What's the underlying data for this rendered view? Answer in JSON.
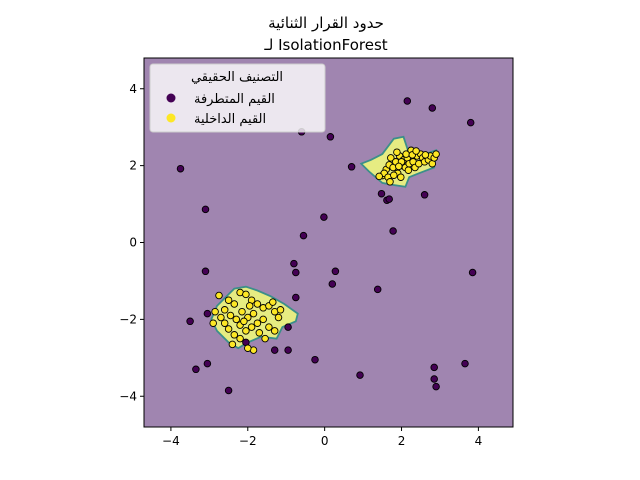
{
  "chart_data": {
    "type": "scatter",
    "title_line1": "حدود القرار الثنائية",
    "title_line2": "لـ IsolationForest",
    "xlabel": "",
    "ylabel": "",
    "xlim": [
      -4.7,
      4.9
    ],
    "ylim": [
      -4.8,
      4.8
    ],
    "xticks": [
      -4,
      -2,
      0,
      2,
      4
    ],
    "yticks": [
      -4,
      -2,
      0,
      2,
      4
    ],
    "grid": false,
    "legend": {
      "title": "التصنيف الحقيقي",
      "placement": "top-left",
      "entries": [
        {
          "label": "القيم المتطرفة",
          "color": "#440154"
        },
        {
          "label": "القيم الداخلية",
          "color": "#fde725"
        }
      ]
    },
    "colors": {
      "background_region": "#a085b0",
      "inlier_region": "#e6ec82",
      "boundary": "#3b8f8a",
      "outlier": "#440154",
      "inlier": "#fde725",
      "marker_edge": "#000000"
    },
    "inlier_regions": [
      {
        "polygon": [
          [
            1.5,
            2.3
          ],
          [
            1.8,
            2.7
          ],
          [
            2.05,
            2.75
          ],
          [
            2.2,
            2.3
          ],
          [
            2.5,
            2.25
          ],
          [
            2.75,
            2.35
          ],
          [
            2.9,
            2.4
          ],
          [
            2.85,
            1.95
          ],
          [
            2.45,
            1.8
          ],
          [
            2.2,
            1.7
          ],
          [
            2.1,
            1.45
          ],
          [
            1.75,
            1.5
          ],
          [
            1.5,
            1.55
          ],
          [
            1.15,
            1.85
          ],
          [
            0.95,
            2.05
          ],
          [
            1.2,
            2.15
          ]
        ]
      },
      {
        "polygon": [
          [
            -2.35,
            -1.2
          ],
          [
            -2.05,
            -1.15
          ],
          [
            -1.75,
            -1.25
          ],
          [
            -1.4,
            -1.4
          ],
          [
            -1.05,
            -1.6
          ],
          [
            -0.7,
            -1.85
          ],
          [
            -0.75,
            -2.05
          ],
          [
            -1.1,
            -2.2
          ],
          [
            -1.25,
            -2.5
          ],
          [
            -1.65,
            -2.45
          ],
          [
            -2.0,
            -2.6
          ],
          [
            -2.25,
            -2.75
          ],
          [
            -2.5,
            -2.6
          ],
          [
            -2.8,
            -2.3
          ],
          [
            -2.95,
            -2.0
          ],
          [
            -2.8,
            -1.65
          ],
          [
            -2.55,
            -1.4
          ]
        ]
      }
    ],
    "series": [
      {
        "name": "القيم المتطرفة",
        "points": [
          [
            2.15,
            3.68
          ],
          [
            2.8,
            3.5
          ],
          [
            3.8,
            3.12
          ],
          [
            0.15,
            2.75
          ],
          [
            -0.6,
            2.88
          ],
          [
            0.7,
            1.97
          ],
          [
            -3.75,
            1.92
          ],
          [
            1.48,
            1.27
          ],
          [
            1.62,
            1.1
          ],
          [
            1.68,
            1.13
          ],
          [
            2.6,
            1.24
          ],
          [
            -3.1,
            0.86
          ],
          [
            -0.02,
            0.66
          ],
          [
            1.78,
            0.3
          ],
          [
            -0.55,
            0.18
          ],
          [
            -0.8,
            -0.55
          ],
          [
            -0.75,
            -0.78
          ],
          [
            -3.1,
            -0.75
          ],
          [
            0.28,
            -0.75
          ],
          [
            3.85,
            -0.78
          ],
          [
            0.2,
            -1.08
          ],
          [
            1.38,
            -1.22
          ],
          [
            -0.75,
            -1.43
          ],
          [
            -3.5,
            -2.05
          ],
          [
            -3.05,
            -1.85
          ],
          [
            -0.95,
            -2.2
          ],
          [
            -3.05,
            -3.15
          ],
          [
            -3.35,
            -3.3
          ],
          [
            -1.3,
            -2.8
          ],
          [
            -0.95,
            -2.8
          ],
          [
            -0.25,
            -3.05
          ],
          [
            0.92,
            -3.45
          ],
          [
            2.85,
            -3.25
          ],
          [
            2.85,
            -3.55
          ],
          [
            3.65,
            -3.15
          ],
          [
            -2.5,
            -3.85
          ],
          [
            2.9,
            -3.75
          ],
          [
            -2.05,
            -2.6
          ]
        ]
      },
      {
        "name": "القيم الداخلية",
        "points": [
          [
            1.5,
            1.74
          ],
          [
            1.6,
            1.9
          ],
          [
            1.68,
            2.02
          ],
          [
            1.78,
            1.95
          ],
          [
            1.72,
            2.2
          ],
          [
            1.85,
            2.1
          ],
          [
            1.9,
            1.8
          ],
          [
            1.95,
            2.25
          ],
          [
            2.02,
            2.0
          ],
          [
            2.05,
            2.15
          ],
          [
            2.1,
            1.95
          ],
          [
            2.15,
            2.2
          ],
          [
            2.2,
            2.05
          ],
          [
            2.25,
            2.4
          ],
          [
            2.3,
            2.1
          ],
          [
            2.35,
            1.95
          ],
          [
            2.4,
            2.25
          ],
          [
            2.45,
            2.05
          ],
          [
            2.5,
            2.3
          ],
          [
            2.55,
            2.2
          ],
          [
            2.6,
            2.1
          ],
          [
            2.7,
            2.15
          ],
          [
            2.75,
            2.25
          ],
          [
            2.8,
            2.05
          ],
          [
            2.85,
            2.2
          ],
          [
            2.9,
            2.3
          ],
          [
            1.55,
            1.8
          ],
          [
            1.65,
            1.7
          ],
          [
            1.8,
            1.75
          ],
          [
            1.98,
            1.7
          ],
          [
            2.12,
            2.3
          ],
          [
            2.28,
            2.28
          ],
          [
            1.88,
            2.35
          ],
          [
            2.0,
            2.1
          ],
          [
            2.18,
            1.88
          ],
          [
            1.7,
            1.58
          ],
          [
            1.42,
            1.72
          ],
          [
            2.62,
            2.28
          ],
          [
            2.38,
            2.38
          ],
          [
            1.93,
            1.98
          ],
          [
            -2.75,
            -1.38
          ],
          [
            -2.5,
            -1.5
          ],
          [
            -2.35,
            -1.6
          ],
          [
            -2.2,
            -1.3
          ],
          [
            -2.05,
            -1.35
          ],
          [
            -1.9,
            -1.5
          ],
          [
            -1.75,
            -1.6
          ],
          [
            -1.6,
            -1.7
          ],
          [
            -1.45,
            -1.65
          ],
          [
            -1.3,
            -1.8
          ],
          [
            -1.2,
            -1.95
          ],
          [
            -2.85,
            -1.8
          ],
          [
            -2.7,
            -1.95
          ],
          [
            -2.6,
            -2.1
          ],
          [
            -2.5,
            -2.25
          ],
          [
            -2.35,
            -2.4
          ],
          [
            -2.2,
            -2.5
          ],
          [
            -2.05,
            -2.3
          ],
          [
            -1.9,
            -2.2
          ],
          [
            -1.75,
            -2.1
          ],
          [
            -1.6,
            -2.0
          ],
          [
            -1.45,
            -2.2
          ],
          [
            -1.3,
            -2.3
          ],
          [
            -2.15,
            -1.8
          ],
          [
            -2.0,
            -1.95
          ],
          [
            -1.85,
            -1.85
          ],
          [
            -2.3,
            -2.0
          ],
          [
            -2.45,
            -1.9
          ],
          [
            -1.7,
            -2.35
          ],
          [
            -1.55,
            -2.5
          ],
          [
            -1.85,
            -2.8
          ],
          [
            -2.0,
            -2.75
          ],
          [
            -2.2,
            -2.15
          ],
          [
            -1.95,
            -1.65
          ],
          [
            -2.6,
            -1.75
          ],
          [
            -2.9,
            -2.1
          ],
          [
            -2.4,
            -2.65
          ],
          [
            -1.35,
            -1.55
          ],
          [
            -1.15,
            -1.75
          ],
          [
            -2.1,
            -2.05
          ]
        ]
      }
    ]
  }
}
